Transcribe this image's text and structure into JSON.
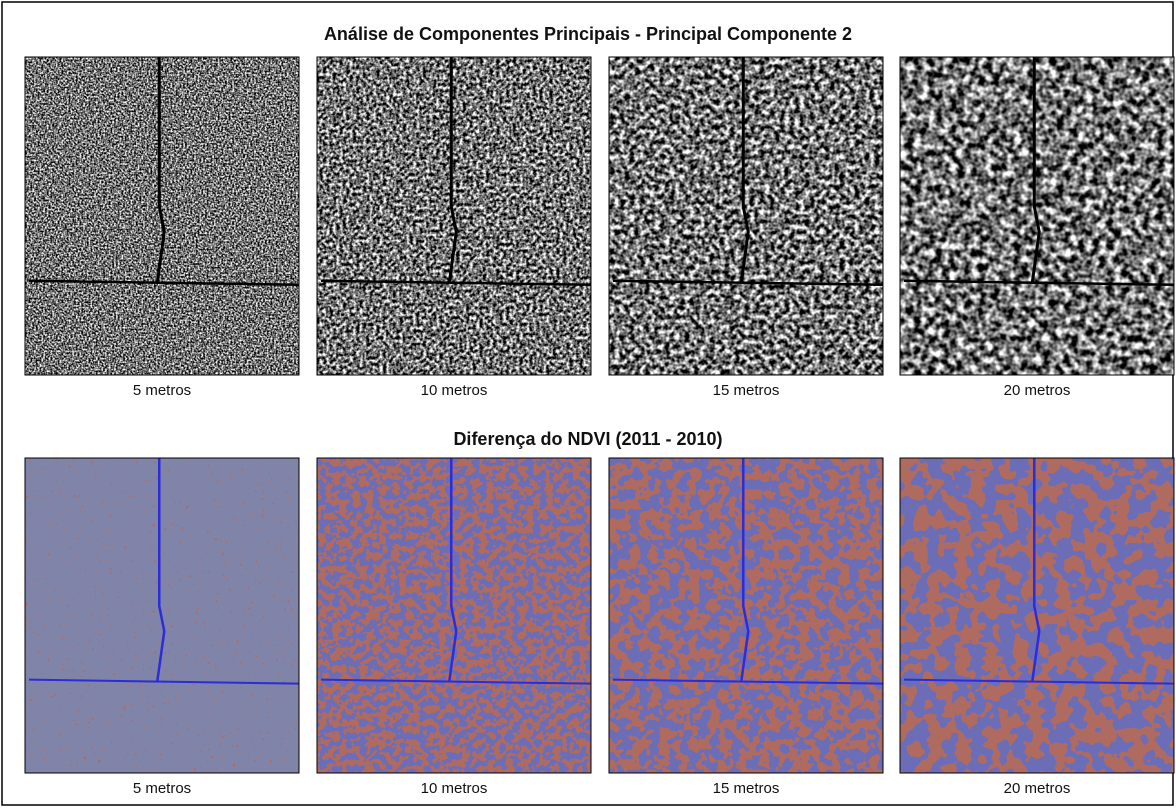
{
  "figure": {
    "sections": [
      {
        "title": "Análise de Componentes Principais - Principal Componente 2",
        "captions": [
          "5 metros",
          "10 metros",
          "15 metros",
          "20 metros"
        ]
      },
      {
        "title": "Diferença do NDVI (2011 - 2010)",
        "captions": [
          "5 metros",
          "10 metros",
          "15 metros",
          "20 metros"
        ]
      }
    ]
  }
}
